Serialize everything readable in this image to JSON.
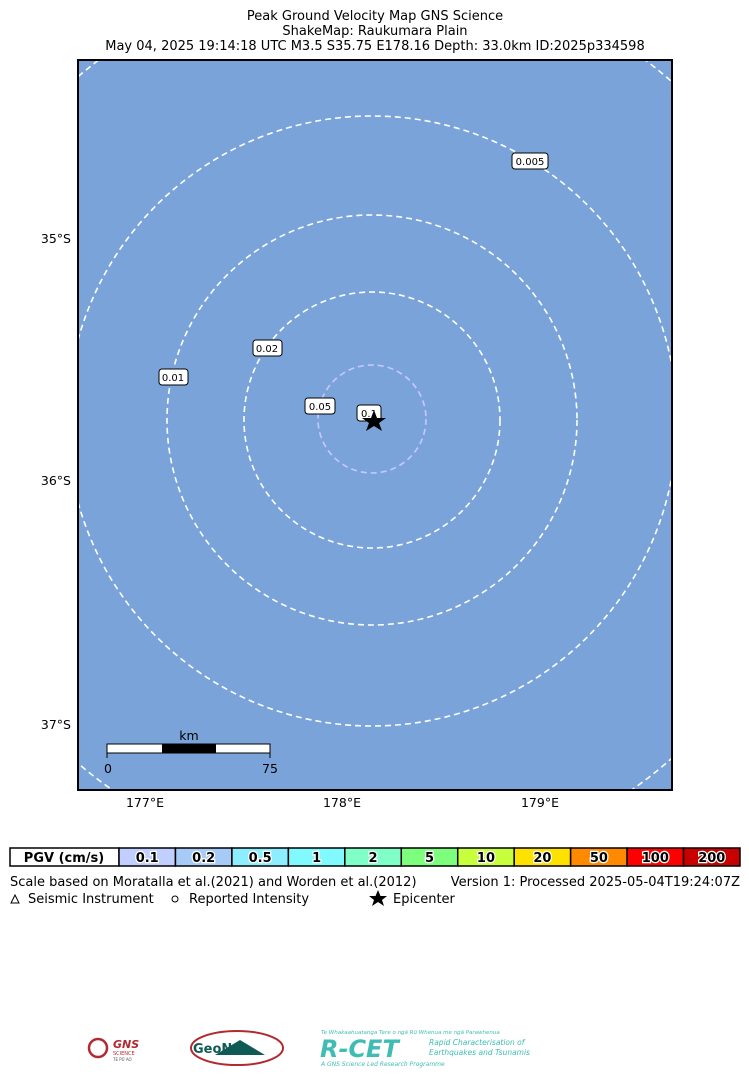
{
  "header": {
    "title_lines": [
      "Peak Ground Velocity Map GNS Science",
      "ShakeMap: Raukumara Plain",
      "May 04, 2025 19:14:18 UTC M3.5 S35.75 E178.16 Depth: 33.0km ID:2025p334598"
    ]
  },
  "map": {
    "lat_labels": [
      "35°S",
      "36°S",
      "37°S"
    ],
    "lon_labels": [
      "177°E",
      "178°E",
      "179°E"
    ],
    "contour_labels": [
      "0.005",
      "0.01",
      "0.02",
      "0.05",
      "0.1"
    ],
    "scale_bar": {
      "unit": "km",
      "start": "0",
      "end": "75"
    },
    "background": "#7aa3da"
  },
  "legend": {
    "title": "PGV (cm/s)",
    "bins": [
      {
        "label": "0.1",
        "color": "#c0cfff"
      },
      {
        "label": "0.2",
        "color": "#a6cbf7"
      },
      {
        "label": "0.5",
        "color": "#8ceeff"
      },
      {
        "label": "1",
        "color": "#80faff"
      },
      {
        "label": "2",
        "color": "#80ffc8"
      },
      {
        "label": "5",
        "color": "#7dff7d"
      },
      {
        "label": "10",
        "color": "#c8ff3c"
      },
      {
        "label": "20",
        "color": "#ffe100"
      },
      {
        "label": "50",
        "color": "#ff8a00"
      },
      {
        "label": "100",
        "color": "#ff0000"
      },
      {
        "label": "200",
        "color": "#c80000"
      }
    ]
  },
  "footer": {
    "scale_note": "Scale based on Moratalla et al.(2021) and Worden et al.(2012)",
    "version": "Version 1: Processed 2025-05-04T19:24:07Z",
    "symbols": [
      "Seismic Instrument",
      "Reported Intensity",
      "Epicenter"
    ]
  },
  "logos": {
    "gns": "GNS",
    "gns_sub": "SCIENCE",
    "gns_maori": "TE PŪ AO",
    "geonet": "GeoNet",
    "rcet": "R-CET",
    "rcet_top": "Te Whakaahuatanga Tere o ngā Rū Whenua me ngā Parawhenua",
    "rcet_line1": "Rapid Characterisation of",
    "rcet_line2": "Earthquakes and Tsunamis",
    "rcet_bottom": "A GNS Science Led Research Programme"
  }
}
